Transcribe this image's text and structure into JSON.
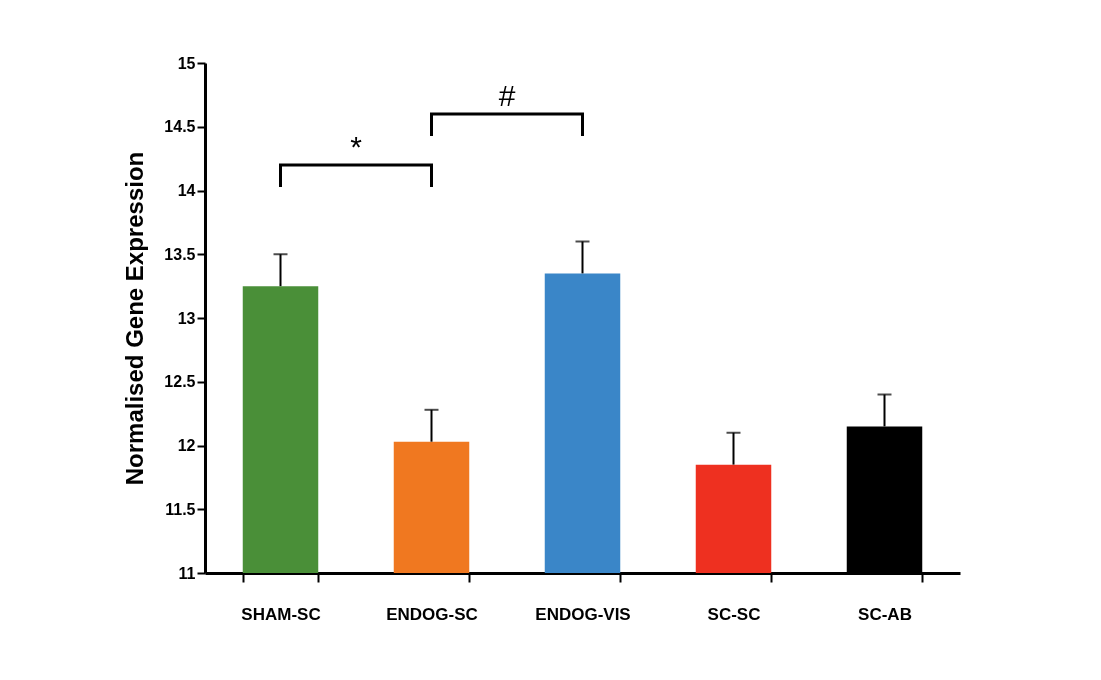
{
  "chart_data": {
    "type": "bar",
    "ylabel": "Normalised Gene Expression",
    "categories": [
      "SHAM-SC",
      "ENDOG-SC",
      "ENDOG-VIS",
      "SC-SC",
      "SC-AB"
    ],
    "values": [
      13.25,
      12.03,
      13.35,
      11.85,
      12.15
    ],
    "colors": [
      "#4a8f38",
      "#f07820",
      "#3a86c8",
      "#ee3020",
      "#000000"
    ],
    "errors": [
      [
        13.25,
        13.5
      ],
      [
        12.03,
        12.28
      ],
      [
        13.35,
        13.6
      ],
      [
        11.85,
        12.1
      ],
      [
        12.15,
        12.4
      ]
    ],
    "ylim": [
      11,
      15
    ],
    "yticks": [
      11,
      11.5,
      12,
      12.5,
      13,
      13.5,
      14,
      14.5,
      15
    ],
    "annotations": [
      "*",
      "#"
    ],
    "grid": false,
    "legend": false
  }
}
